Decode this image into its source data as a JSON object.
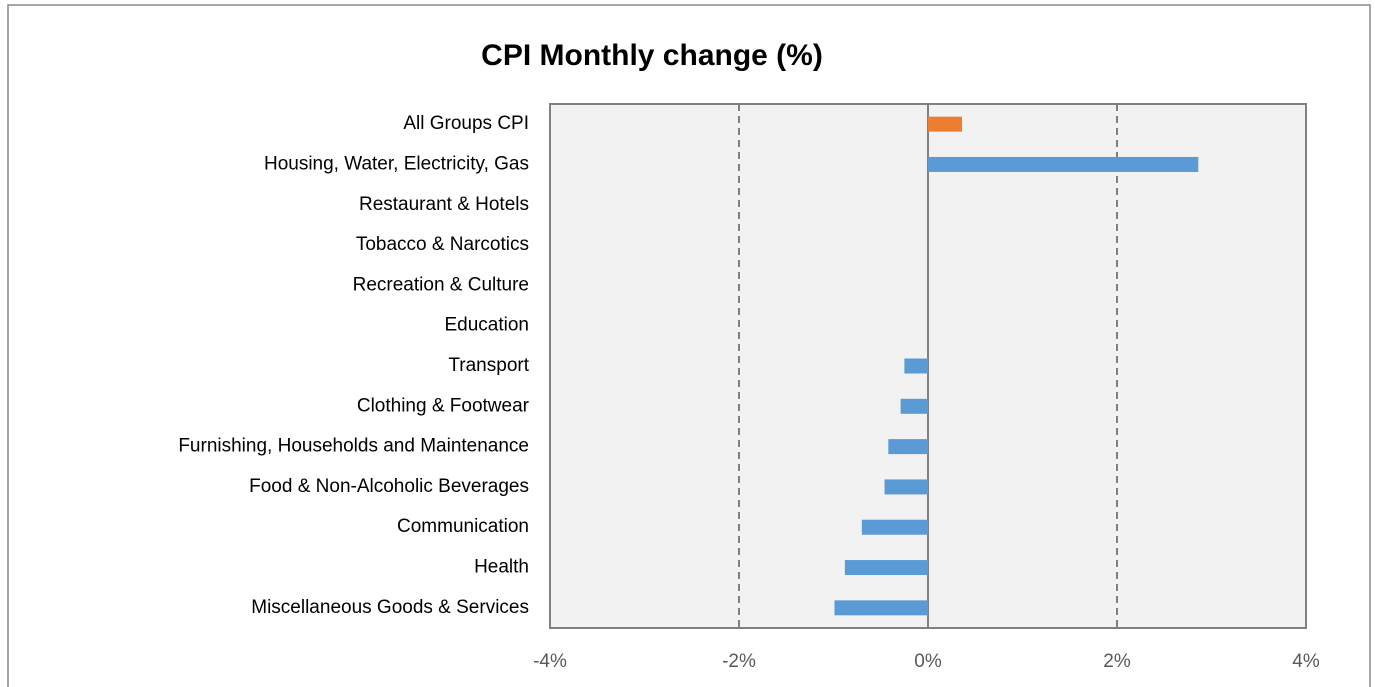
{
  "chart_data": {
    "type": "hbar",
    "title": "CPI Monthly change (%)",
    "categories": [
      "All Groups CPI",
      "Housing, Water, Electricity, Gas",
      "Restaurant & Hotels",
      "Tobacco & Narcotics",
      "Recreation & Culture",
      "Education",
      "Transport",
      "Clothing & Footwear",
      "Furnishing, Households and Maintenance",
      "Food & Non-Alcoholic Beverages",
      "Communication",
      "Health",
      "Miscellaneous Goods & Services"
    ],
    "values": [
      0.36,
      2.86,
      0,
      0,
      0,
      0,
      -0.25,
      -0.29,
      -0.42,
      -0.46,
      -0.7,
      -0.88,
      -0.99
    ],
    "colors": [
      "#ed7d31",
      "#5b9bd5",
      "#5b9bd5",
      "#5b9bd5",
      "#5b9bd5",
      "#5b9bd5",
      "#5b9bd5",
      "#5b9bd5",
      "#5b9bd5",
      "#5b9bd5",
      "#5b9bd5",
      "#5b9bd5",
      "#5b9bd5"
    ],
    "xlim": [
      -4,
      4
    ],
    "xticks": [
      {
        "value": -4,
        "label": "-4%"
      },
      {
        "value": -2,
        "label": "-2%"
      },
      {
        "value": 0,
        "label": "0%"
      },
      {
        "value": 2,
        "label": "2%"
      },
      {
        "value": 4,
        "label": "4%"
      }
    ],
    "grid": true
  }
}
